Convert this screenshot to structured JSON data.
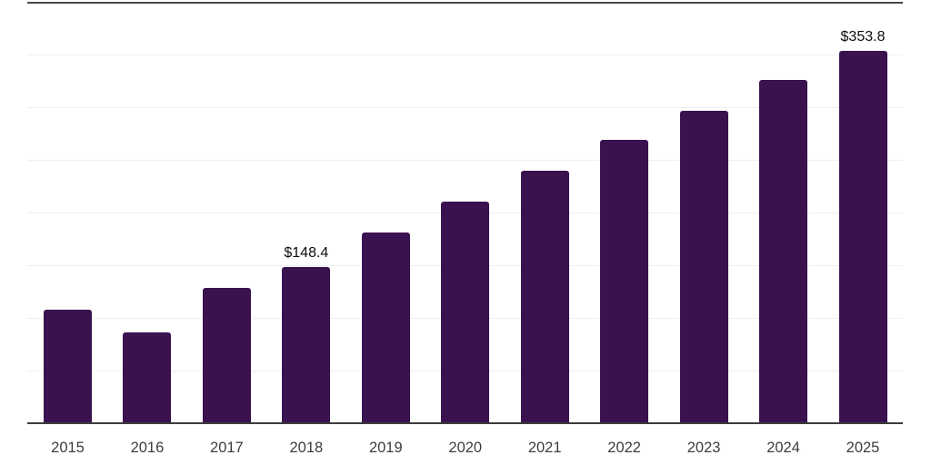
{
  "chart_data": {
    "type": "bar",
    "title": "",
    "xlabel": "",
    "ylabel": "",
    "categories": [
      "2015",
      "2016",
      "2017",
      "2018",
      "2019",
      "2020",
      "2021",
      "2022",
      "2023",
      "2024",
      "2025"
    ],
    "values": [
      108,
      86,
      129,
      148.4,
      181,
      211,
      240,
      269,
      297,
      326,
      353.8
    ],
    "data_labels": {
      "2018": "$148.4",
      "2025": "$353.8"
    },
    "value_prefix": "$",
    "ylim": [
      0,
      400
    ],
    "gridline_step": 50,
    "grid": "horizontal",
    "legend_position": "none",
    "y_axis_ticks_visible": false
  },
  "colors": {
    "bar": "#3A124F",
    "gridline": "#efefef",
    "axis_line": "#3b3b3b",
    "top_border": "#474747",
    "x_tick_label": "#3d3d3d",
    "data_label": "#0d0d0d",
    "background": "#ffffff"
  }
}
